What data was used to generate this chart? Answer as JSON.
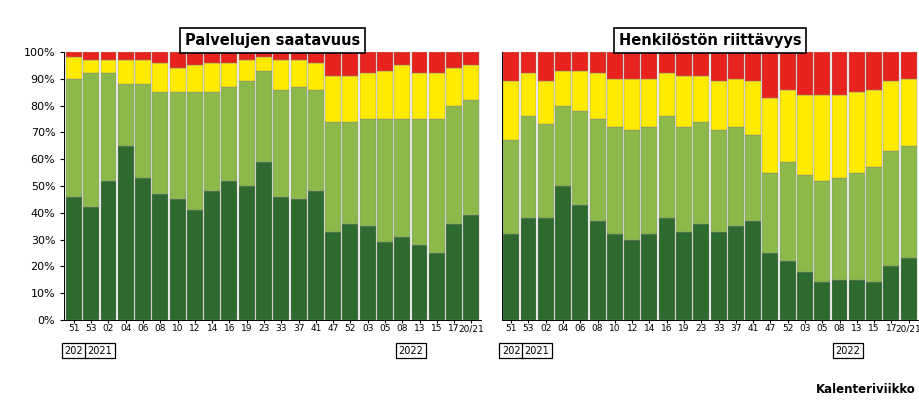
{
  "title1": "Palvelujen saatavuus",
  "title2": "Henkilöstön riittävyys",
  "xlabel_note": "Kalenteriviikko",
  "x_labels": [
    "51",
    "53",
    "02",
    "04",
    "06",
    "08",
    "10",
    "12",
    "14",
    "16",
    "19",
    "23",
    "33",
    "37",
    "41",
    "47",
    "52",
    "03",
    "05",
    "08",
    "13",
    "15",
    "17",
    "20/21"
  ],
  "colors": [
    "#2d6a2d",
    "#8db84a",
    "#ffeb00",
    "#e8231e"
  ],
  "chart1_dark_green": [
    46,
    42,
    52,
    65,
    53,
    47,
    45,
    41,
    48,
    52,
    50,
    59,
    46,
    45,
    48,
    33,
    36,
    35,
    29,
    31,
    28,
    25,
    36,
    39
  ],
  "chart1_light_green": [
    44,
    50,
    40,
    23,
    35,
    38,
    40,
    44,
    37,
    35,
    39,
    34,
    40,
    42,
    38,
    41,
    38,
    40,
    46,
    44,
    47,
    50,
    44,
    43
  ],
  "chart1_yellow": [
    8,
    5,
    5,
    9,
    9,
    11,
    9,
    10,
    11,
    9,
    8,
    5,
    11,
    10,
    10,
    17,
    17,
    17,
    18,
    20,
    17,
    17,
    14,
    13
  ],
  "chart1_red": [
    2,
    3,
    3,
    3,
    3,
    4,
    6,
    5,
    4,
    4,
    3,
    2,
    3,
    3,
    4,
    9,
    9,
    8,
    7,
    5,
    8,
    8,
    6,
    5
  ],
  "chart2_dark_green": [
    32,
    38,
    38,
    50,
    43,
    37,
    32,
    30,
    32,
    38,
    33,
    36,
    33,
    35,
    37,
    25,
    22,
    18,
    14,
    15,
    15,
    14,
    20,
    23
  ],
  "chart2_light_green": [
    35,
    38,
    35,
    30,
    35,
    38,
    40,
    41,
    40,
    38,
    39,
    38,
    38,
    37,
    32,
    30,
    37,
    36,
    38,
    38,
    40,
    43,
    43,
    42
  ],
  "chart2_yellow": [
    22,
    16,
    16,
    13,
    15,
    17,
    18,
    19,
    18,
    16,
    19,
    17,
    18,
    18,
    20,
    28,
    27,
    30,
    32,
    31,
    30,
    29,
    26,
    25
  ],
  "chart2_red": [
    11,
    8,
    11,
    7,
    7,
    8,
    10,
    10,
    10,
    8,
    9,
    9,
    11,
    10,
    11,
    17,
    14,
    16,
    16,
    16,
    15,
    14,
    11,
    10
  ],
  "year_spans": [
    [
      0,
      0,
      "202"
    ],
    [
      1,
      2,
      "2021"
    ],
    [
      16,
      23,
      "2022"
    ]
  ]
}
